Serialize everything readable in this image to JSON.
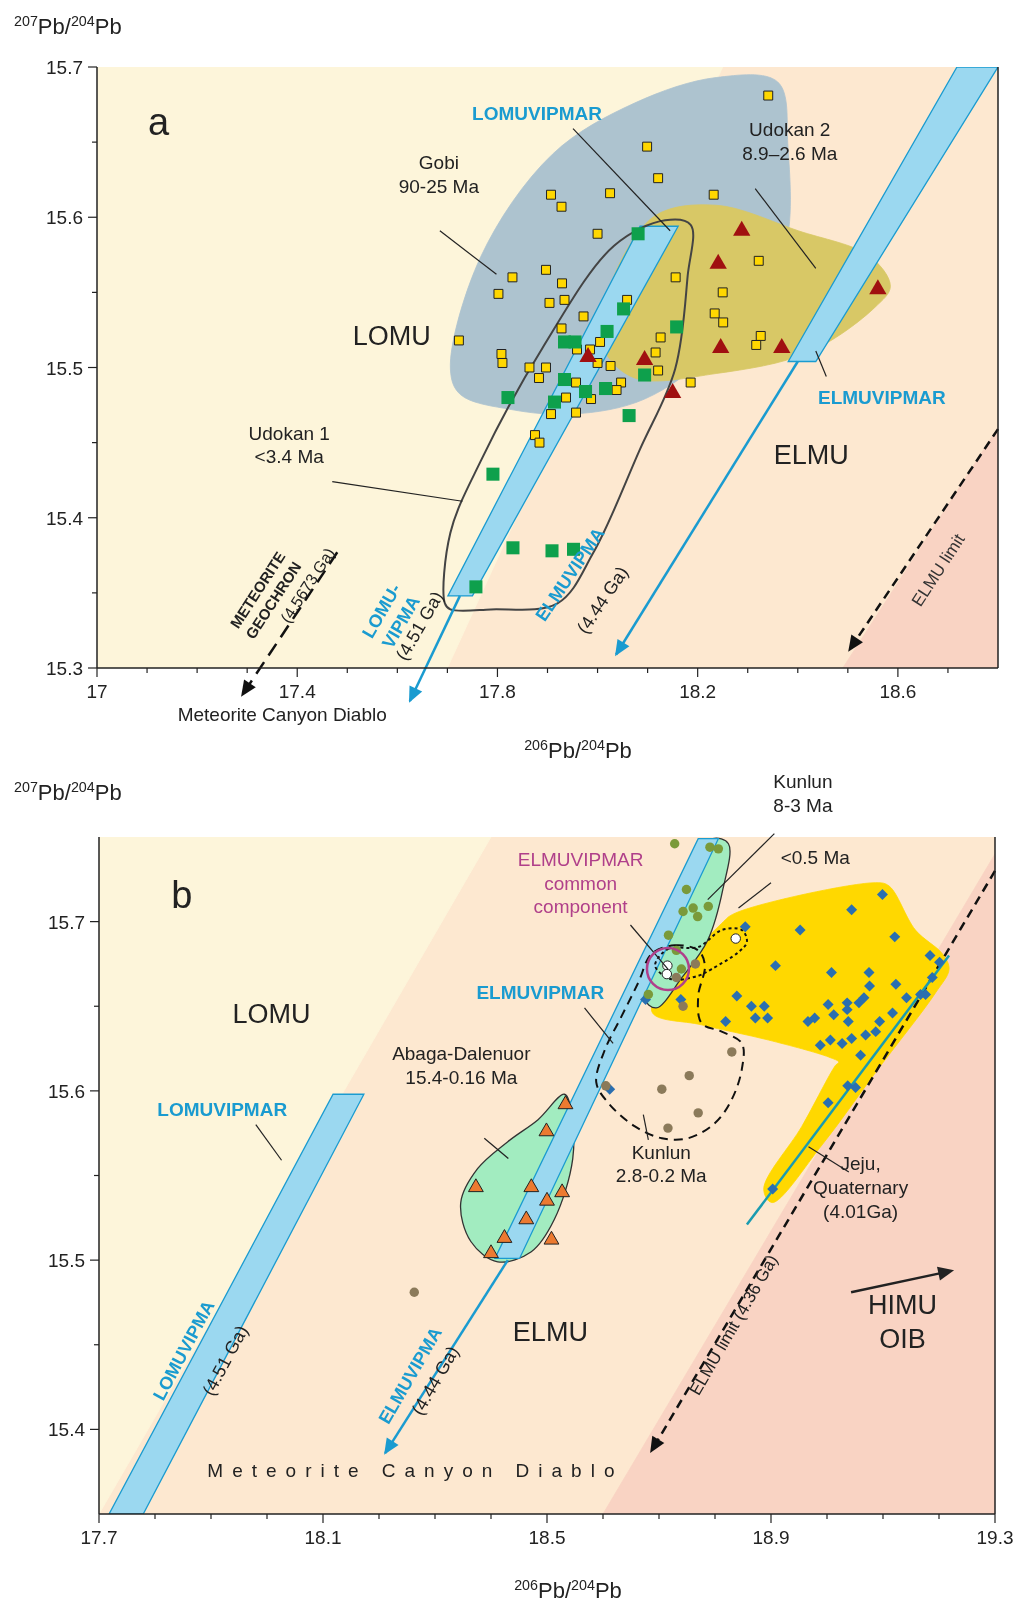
{
  "chart_data": [
    {
      "type": "scatter",
      "xlabel": "$^{206}$Pb/$^{204}$Pb",
      "ylabel": "$^{207}$Pb/$^{204}$Pb",
      "xlim": [
        17,
        18.8
      ],
      "ylim": [
        15.3,
        15.7
      ],
      "xticks": [
        17,
        {
          "value": 17.1,
          "label": null
        },
        {
          "value": 17.2,
          "label": null
        },
        {
          "value": 17.3,
          "label": null
        },
        17.4,
        {
          "value": 17.5,
          "label": null
        },
        {
          "value": 17.6,
          "label": null
        },
        {
          "value": 17.7,
          "label": null
        },
        17.8,
        {
          "value": 17.9,
          "label": null
        },
        {
          "value": 18,
          "label": null
        },
        {
          "value": 18.1,
          "label": null
        },
        18.2,
        {
          "value": 18.3,
          "label": null
        },
        {
          "value": 18.4,
          "label": null
        },
        {
          "value": 18.5,
          "label": null
        },
        18.6,
        {
          "value": 18.7,
          "label": null
        }
      ],
      "yticks": [
        15.3,
        {
          "value": 15.35,
          "label": null
        },
        15.4,
        {
          "value": 15.45,
          "label": null
        },
        15.5,
        {
          "value": 15.55,
          "label": null
        },
        15.6,
        {
          "value": 15.65,
          "label": null
        },
        15.7
      ],
      "annotations": [
        "a",
        "LOMU",
        "ELMU",
        "LOMUVIPMAR",
        "ELMUVIPMAR",
        "Gobi\n90-25 Ma",
        "Udokan 2\n8.9–2.6 Ma",
        "Udokan 1\n<3.4 Ma",
        "LOMU-\nVIPMA",
        "(4.51 Ga)",
        "ELMUVIPMA",
        "(4.44 Ga)",
        "ELMU limit",
        "METEORITE\nGEOCHRON",
        "(4.5673 Ga)",
        "Meteorite Canyon Diablo"
      ],
      "series": [
        {
          "marker": "square",
          "color": "#ffd700",
          "x": [
            18.099,
            18.121,
            17.907,
            17.928,
            18.025,
            18.0,
            17.83,
            17.802,
            17.897,
            17.929,
            17.904,
            17.934,
            17.972,
            18.059,
            17.928,
            17.723,
            17.808,
            17.81,
            17.864,
            17.897,
            17.883,
            17.959,
            17.985,
            18.005,
            18.0,
            18.026,
            17.957,
            18.047,
            18.038,
            17.937,
            17.987,
            17.907,
            17.957,
            17.875,
            17.884,
            18.156,
            18.126,
            18.116,
            18.121,
            18.186,
            18.341,
            18.232,
            18.322,
            18.25,
            18.234,
            18.251,
            18.326,
            18.317
          ],
          "values": [
            15.647,
            15.626,
            15.615,
            15.607,
            15.616,
            15.589,
            15.56,
            15.549,
            15.565,
            15.556,
            15.543,
            15.545,
            15.534,
            15.545,
            15.526,
            15.518,
            15.509,
            15.503,
            15.5,
            15.5,
            15.493,
            15.512,
            15.512,
            15.517,
            15.503,
            15.501,
            15.49,
            15.49,
            15.485,
            15.48,
            15.479,
            15.469,
            15.47,
            15.455,
            15.45,
            15.56,
            15.52,
            15.51,
            15.498,
            15.49,
            15.681,
            15.615,
            15.571,
            15.55,
            15.536,
            15.53,
            15.521,
            15.515
          ]
        },
        {
          "marker": "square",
          "color": "#0ea04c",
          "x": [
            18.081,
            18.052,
            18.019,
            17.934,
            17.955,
            18.158,
            17.934,
            17.976,
            18.016,
            17.821,
            17.914,
            18.094,
            18.063,
            17.791,
            17.831,
            17.909,
            17.952,
            17.757
          ],
          "values": [
            15.589,
            15.539,
            15.524,
            15.517,
            15.517,
            15.527,
            15.492,
            15.484,
            15.486,
            15.48,
            15.477,
            15.495,
            15.468,
            15.429,
            15.38,
            15.378,
            15.379,
            15.354
          ]
        },
        {
          "marker": "triangle",
          "color": "#a01010",
          "x": [
            17.981,
            18.094,
            18.15,
            18.288,
            18.241,
            18.56,
            18.246,
            18.368
          ],
          "values": [
            15.507,
            15.505,
            15.483,
            15.591,
            15.569,
            15.552,
            15.513,
            15.513
          ]
        }
      ]
    },
    {
      "type": "scatter",
      "xlabel": "$^{206}$Pb/$^{204}$Pb",
      "ylabel": "$^{207}$Pb/$^{204}$Pb",
      "xlim": [
        17.7,
        19.3
      ],
      "ylim": [
        15.35,
        15.75
      ],
      "xticks": [
        17.7,
        {
          "value": 17.8,
          "label": null
        },
        {
          "value": 17.9,
          "label": null
        },
        {
          "value": 18,
          "label": null
        },
        18.1,
        {
          "value": 18.2,
          "label": null
        },
        {
          "value": 18.3,
          "label": null
        },
        {
          "value": 18.4,
          "label": null
        },
        18.5,
        {
          "value": 18.6,
          "label": null
        },
        {
          "value": 18.7,
          "label": null
        },
        {
          "value": 18.8,
          "label": null
        },
        18.9,
        {
          "value": 19,
          "label": null
        },
        {
          "value": 19.1,
          "label": null
        },
        {
          "value": 19.2,
          "label": null
        },
        19.3
      ],
      "yticks": [
        15.4,
        {
          "value": 15.45,
          "label": null
        },
        15.5,
        {
          "value": 15.55,
          "label": null
        },
        15.6,
        {
          "value": 15.65,
          "label": null
        },
        15.7
      ],
      "annotations": [
        "b",
        "LOMU",
        "ELMU",
        "LOMUVIPMAR",
        "ELMUVIPMAR",
        {
          "text": "ELMUVIPMAR\ncommon\ncomponent",
          "x": 18.716,
          "y": 15.672
        },
        {
          "text": "Kunlun\n8-3 Ma",
          "x": 18.787,
          "y": 15.713
        },
        "<0.5 Ma",
        "Abaga-Dalenuor\n15.4-0.16 Ma",
        "Kunlun\n2.8-0.2 Ma",
        {
          "text": "Jeju,\nQuaternary\n(4.01Ga)",
          "x": 18.967,
          "y": 15.567
        },
        "HIMU\nOIB",
        "LOMUVIPMA",
        "(4.51 Ga)",
        "ELMUVIPMA",
        "(4.44 Ga)",
        "ELMU limit (4.36 Ga)",
        "Meteorite Canyon Diablo"
      ],
      "series": [
        {
          "type": "line",
          "color": "#1a9bb0",
          "line_style": "solid",
          "x": [
            18.857,
            19.218
          ],
          "values": [
            15.521,
            15.68
          ]
        },
        {
          "marker": "diamond",
          "color": "#2a6fb0",
          "x": [
            18.676,
            18.739,
            18.612,
            19.099,
            19.044,
            18.952,
            19.121,
            18.854,
            18.908,
            19.008,
            19.075,
            19.184,
            19.201,
            19.188,
            19.123,
            19.076,
            18.839,
            18.865,
            18.888,
            18.872,
            18.894,
            18.819,
            18.966,
            18.978,
            19.002,
            19.036,
            19.057,
            19.066,
            19.036,
            19.012,
            19.038,
            19.094,
            19.117,
            19.142,
            19.167,
            19.176,
            18.988,
            19.006,
            19.027,
            19.044,
            19.069,
            19.087,
            19.06,
            19.037,
            19.051,
            19.002,
            18.903
          ],
          "values": [
            15.654,
            15.654,
            15.601,
            15.716,
            15.707,
            15.695,
            15.691,
            15.697,
            15.674,
            15.67,
            15.67,
            15.68,
            15.676,
            15.667,
            15.663,
            15.662,
            15.656,
            15.65,
            15.65,
            15.643,
            15.643,
            15.641,
            15.641,
            15.643,
            15.651,
            15.652,
            15.652,
            15.655,
            15.648,
            15.645,
            15.641,
            15.641,
            15.646,
            15.655,
            15.657,
            15.657,
            15.627,
            15.63,
            15.628,
            15.631,
            15.633,
            15.635,
            15.621,
            15.603,
            15.602,
            15.593,
            15.542
          ]
        },
        {
          "marker": "circle",
          "color": "#7a9a3a",
          "x": [
            18.728,
            18.791,
            18.806,
            18.749,
            18.761,
            18.743,
            18.769,
            18.788,
            18.717,
            18.731,
            18.74,
            18.681
          ],
          "values": [
            15.746,
            15.744,
            15.743,
            15.719,
            15.708,
            15.706,
            15.703,
            15.709,
            15.692,
            15.683,
            15.672,
            15.657
          ]
        },
        {
          "marker": "circle",
          "color": "#8b7a5a",
          "x": [
            18.731,
            18.765,
            18.743,
            18.605,
            18.705,
            18.754,
            18.77,
            18.716,
            18.83,
            18.263
          ],
          "values": [
            15.667,
            15.675,
            15.65,
            15.603,
            15.601,
            15.609,
            15.587,
            15.578,
            15.623,
            15.481
          ]
        },
        {
          "marker": "circle",
          "color": "#ffffff",
          "x": [
            18.715,
            18.714,
            18.837
          ],
          "values": [
            15.674,
            15.669,
            15.69
          ]
        },
        {
          "marker": "triangle",
          "color": "#ec7a30",
          "x": [
            18.533,
            18.499,
            18.373,
            18.472,
            18.527,
            18.5,
            18.463,
            18.424,
            18.508,
            18.4
          ],
          "values": [
            15.592,
            15.576,
            15.543,
            15.543,
            15.54,
            15.535,
            15.524,
            15.513,
            15.512,
            15.504
          ]
        }
      ]
    }
  ]
}
